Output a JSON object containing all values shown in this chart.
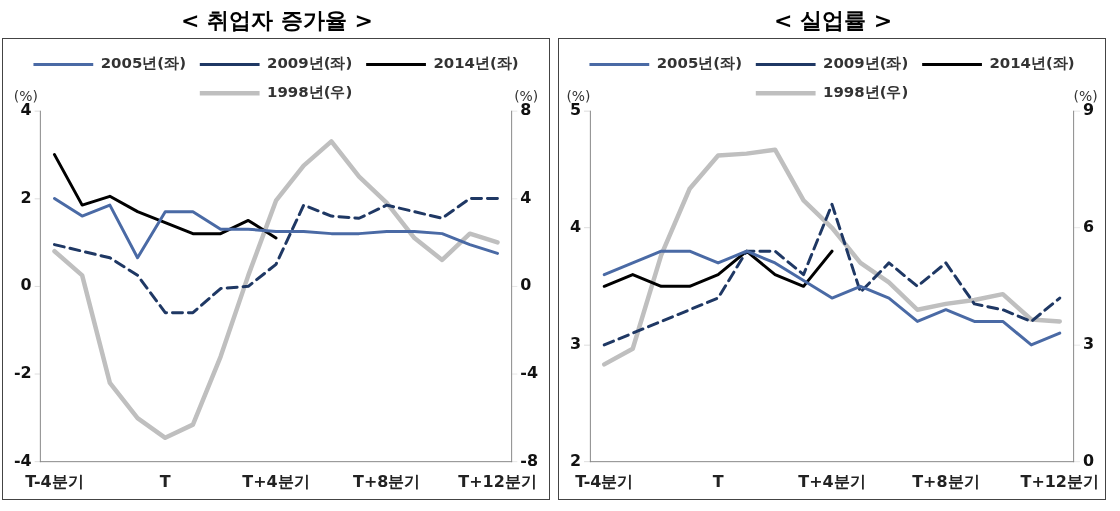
{
  "chart_data": [
    {
      "type": "line",
      "title": "< 취업자 증가율 >",
      "ylabel": "(%)",
      "y2label": "(%)",
      "categories": [
        "T-4분기",
        null,
        null,
        null,
        "T",
        null,
        null,
        null,
        "T+4분기",
        null,
        null,
        null,
        "T+8분기",
        null,
        null,
        null,
        "T+12분기"
      ],
      "ylim": [
        -4,
        4
      ],
      "yticks": [
        -4,
        -2,
        0,
        2,
        4
      ],
      "y2lim": [
        -8,
        8
      ],
      "y2ticks": [
        -8,
        -4,
        0,
        4,
        8
      ],
      "legend": "top",
      "grid": false,
      "marker": "none",
      "series": [
        {
          "name": "2005년(좌)",
          "color": "#4a6aa5",
          "line_style": "solid",
          "values": [
            2.0,
            1.6,
            1.85,
            0.65,
            1.7,
            1.7,
            1.3,
            1.3,
            1.25,
            1.25,
            1.2,
            1.2,
            1.25,
            1.25,
            1.2,
            0.95,
            0.75
          ]
        },
        {
          "name": "2009년(좌)",
          "color": "#1f3864",
          "line_style": "dashed",
          "values": [
            0.95,
            0.8,
            0.65,
            0.25,
            -0.6,
            -0.6,
            -0.05,
            0.0,
            0.5,
            1.85,
            1.6,
            1.55,
            1.85,
            1.7,
            1.55,
            2.0,
            2.0
          ]
        },
        {
          "name": "2014년(좌)",
          "color": "#000000",
          "line_style": "solid",
          "values": [
            3.0,
            1.85,
            2.05,
            1.7,
            1.45,
            1.2,
            1.2,
            1.5,
            1.1,
            null,
            null,
            null,
            null,
            null,
            null,
            null,
            null
          ]
        },
        {
          "name": "1998년(우)",
          "color": "#bfbfbf",
          "line_style": "solid",
          "axis": "y2",
          "values": [
            1.6,
            0.5,
            -4.4,
            -6.0,
            -6.9,
            -6.3,
            -3.2,
            0.5,
            3.9,
            5.5,
            6.6,
            5.0,
            3.8,
            2.2,
            1.2,
            2.4,
            2.0
          ]
        }
      ]
    },
    {
      "type": "line",
      "title": "< 실업률 >",
      "ylabel": "(%)",
      "y2label": "(%)",
      "categories": [
        "T-4분기",
        null,
        null,
        null,
        "T",
        null,
        null,
        null,
        "T+4분기",
        null,
        null,
        null,
        "T+8분기",
        null,
        null,
        null,
        "T+12분기"
      ],
      "ylim": [
        2,
        5
      ],
      "yticks": [
        2,
        3,
        4,
        5
      ],
      "y2lim": [
        0,
        9
      ],
      "y2ticks": [
        0,
        3,
        6,
        9
      ],
      "legend": "top",
      "grid": false,
      "marker": "none",
      "series": [
        {
          "name": "2005년(좌)",
          "color": "#4a6aa5",
          "line_style": "solid",
          "values": [
            3.6,
            3.7,
            3.8,
            3.8,
            3.7,
            3.8,
            3.7,
            3.55,
            3.4,
            3.5,
            3.4,
            3.2,
            3.3,
            3.2,
            3.2,
            3.0,
            3.1
          ]
        },
        {
          "name": "2009년(좌)",
          "color": "#1f3864",
          "line_style": "dashed",
          "values": [
            3.0,
            3.1,
            3.2,
            3.3,
            3.4,
            3.8,
            3.8,
            3.6,
            4.2,
            3.45,
            3.7,
            3.5,
            3.7,
            3.35,
            3.3,
            3.2,
            3.4
          ]
        },
        {
          "name": "2014년(좌)",
          "color": "#000000",
          "line_style": "solid",
          "values": [
            3.5,
            3.6,
            3.5,
            3.5,
            3.6,
            3.8,
            3.6,
            3.5,
            3.8,
            null,
            null,
            null,
            null,
            null,
            null,
            null,
            null
          ]
        },
        {
          "name": "1998년(우)",
          "color": "#bfbfbf",
          "line_style": "solid",
          "axis": "y2",
          "values": [
            2.5,
            2.9,
            5.3,
            7.0,
            7.85,
            7.9,
            8.0,
            6.7,
            6.0,
            5.1,
            4.6,
            3.9,
            4.05,
            4.15,
            4.3,
            3.65,
            3.6
          ]
        }
      ]
    }
  ]
}
